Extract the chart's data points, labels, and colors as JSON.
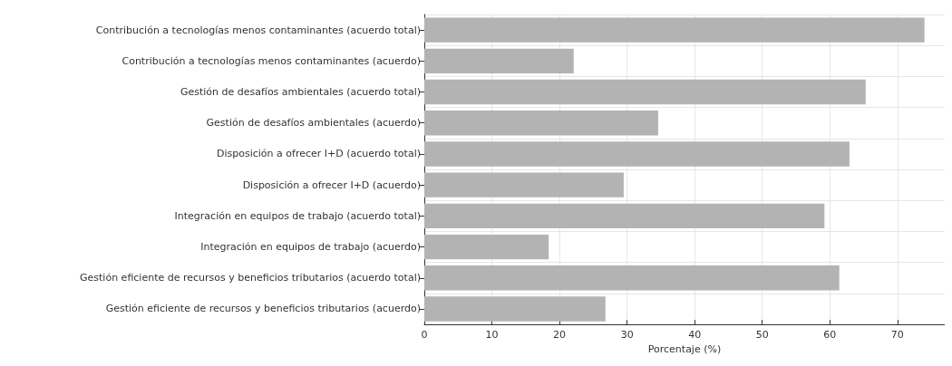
{
  "chart_data": {
    "type": "bar",
    "orientation": "horizontal",
    "categories": [
      "Contribución a tecnologías menos contaminantes (acuerdo total)",
      "Contribución a tecnologías menos contaminantes (acuerdo)",
      "Gestión de desafíos ambientales (acuerdo total)",
      "Gestión de desafíos ambientales (acuerdo)",
      "Disposición a ofrecer I+D (acuerdo total)",
      "Disposición a ofrecer I+D (acuerdo)",
      "Integración en equipos de trabajo (acuerdo total)",
      "Integración en equipos de trabajo (acuerdo)",
      "Gestión eficiente de recursos y beneficios tributarios (acuerdo total)",
      "Gestión eficiente de recursos y beneficios tributarios (acuerdo)"
    ],
    "values": [
      74,
      22.1,
      65.3,
      34.6,
      62.9,
      29.5,
      59.2,
      18.4,
      61.4,
      26.8
    ],
    "color": "#b3b3b3",
    "xlabel": "Porcentaje (%)",
    "xlim": [
      0,
      77
    ],
    "xticks": [
      0,
      10,
      20,
      30,
      40,
      50,
      60,
      70
    ],
    "grid": true
  }
}
